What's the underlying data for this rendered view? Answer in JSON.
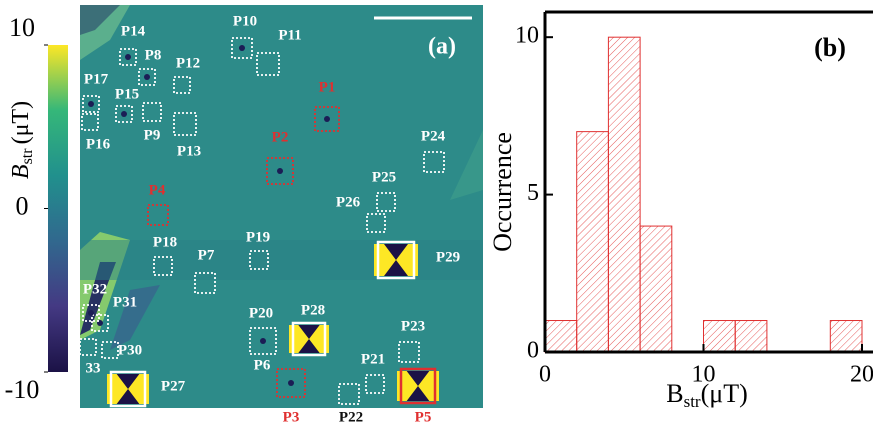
{
  "chart_data": [
    {
      "type": "image",
      "panel_label": "(a)",
      "colorbar_label": "B",
      "colorbar_label_sub": "str",
      "colorbar_label_unit": "(μT)",
      "ylim": [
        -10,
        10
      ],
      "yticks": [
        10,
        0,
        -10
      ],
      "colors": [
        "#fde725",
        "#35b779",
        "#21908d",
        "#31688e",
        "#443983",
        "#1b1246"
      ],
      "sites": [
        {
          "name": "P1",
          "color": "#e03030",
          "box_color": "#e03030",
          "box": "dotted"
        },
        {
          "name": "P2",
          "color": "#e03030",
          "box_color": "#e03030",
          "box": "dotted"
        },
        {
          "name": "P3",
          "color": "#e03030",
          "box_color": "#e03030",
          "box": "dotted"
        },
        {
          "name": "P4",
          "color": "#e03030",
          "box_color": "#e03030",
          "box": "dotted"
        },
        {
          "name": "P5",
          "color": "#e03030",
          "box_color": "#e03030",
          "box": "solid"
        },
        {
          "name": "P6",
          "color": "#ffffff",
          "box_color": "#e03030",
          "box": "dotted"
        },
        {
          "name": "P7",
          "color": "#ffffff",
          "box_color": "#ffffff",
          "box": "dotted"
        },
        {
          "name": "P8",
          "color": "#ffffff",
          "box_color": "#ffffff",
          "box": "dotted"
        },
        {
          "name": "P9",
          "color": "#ffffff",
          "box_color": "#ffffff",
          "box": "dotted"
        },
        {
          "name": "P10",
          "color": "#ffffff",
          "box_color": "#ffffff",
          "box": "dotted"
        },
        {
          "name": "P11",
          "color": "#ffffff",
          "box_color": "#ffffff",
          "box": "dotted"
        },
        {
          "name": "P12",
          "color": "#ffffff",
          "box_color": "#ffffff",
          "box": "dotted"
        },
        {
          "name": "P13",
          "color": "#ffffff",
          "box_color": "#ffffff",
          "box": "dotted"
        },
        {
          "name": "P14",
          "color": "#ffffff",
          "box_color": "#ffffff",
          "box": "dotted"
        },
        {
          "name": "P15",
          "color": "#ffffff",
          "box_color": "#ffffff",
          "box": "dotted"
        },
        {
          "name": "P16",
          "color": "#ffffff",
          "box_color": "#ffffff",
          "box": "dotted"
        },
        {
          "name": "P17",
          "color": "#ffffff",
          "box_color": "#ffffff",
          "box": "dotted"
        },
        {
          "name": "P18",
          "color": "#ffffff",
          "box_color": "#ffffff",
          "box": "dotted"
        },
        {
          "name": "P19",
          "color": "#ffffff",
          "box_color": "#ffffff",
          "box": "dotted"
        },
        {
          "name": "P20",
          "color": "#ffffff",
          "box_color": "#ffffff",
          "box": "dotted"
        },
        {
          "name": "P21",
          "color": "#ffffff",
          "box_color": "#ffffff",
          "box": "dotted"
        },
        {
          "name": "P22",
          "color": "#111111",
          "box_color": "#ffffff",
          "box": "dotted"
        },
        {
          "name": "P23",
          "color": "#ffffff",
          "box_color": "#ffffff",
          "box": "dotted"
        },
        {
          "name": "P24",
          "color": "#ffffff",
          "box_color": "#ffffff",
          "box": "dotted"
        },
        {
          "name": "P25",
          "color": "#ffffff",
          "box_color": "#ffffff",
          "box": "dotted"
        },
        {
          "name": "P26",
          "color": "#ffffff",
          "box_color": "#ffffff",
          "box": "dotted"
        },
        {
          "name": "P27",
          "color": "#ffffff",
          "box_color": "#ffffff",
          "box": "solid"
        },
        {
          "name": "P28",
          "color": "#ffffff",
          "box_color": "#ffffff",
          "box": "solid"
        },
        {
          "name": "P29",
          "color": "#ffffff",
          "box_color": "#ffffff",
          "box": "solid"
        },
        {
          "name": "P30",
          "color": "#ffffff",
          "box_color": "#ffffff",
          "box": "dotted"
        },
        {
          "name": "P31",
          "color": "#ffffff",
          "box_color": "#ffffff",
          "box": "dotted"
        },
        {
          "name": "P32",
          "color": "#ffffff",
          "box_color": "#ffffff",
          "box": "dotted"
        },
        {
          "name": "33",
          "color": "#ffffff",
          "box_color": "#ffffff",
          "box": "dotted"
        }
      ]
    },
    {
      "type": "histogram",
      "panel_label": "(b)",
      "y_label": "Occurrence",
      "x_label": "B",
      "x_label_sub": "str",
      "x_label_unit": "(μT)",
      "bins": [
        0,
        2,
        4,
        6,
        8,
        10,
        12,
        14,
        16,
        18,
        20
      ],
      "counts": [
        1,
        7,
        10,
        4,
        0,
        1,
        1,
        0,
        0,
        1
      ],
      "color": "#e03030",
      "xlim": [
        0,
        20.7
      ],
      "xticks": [
        0,
        10,
        20
      ],
      "ylim": [
        0,
        10.8
      ],
      "yticks": [
        0,
        5,
        10
      ]
    }
  ]
}
